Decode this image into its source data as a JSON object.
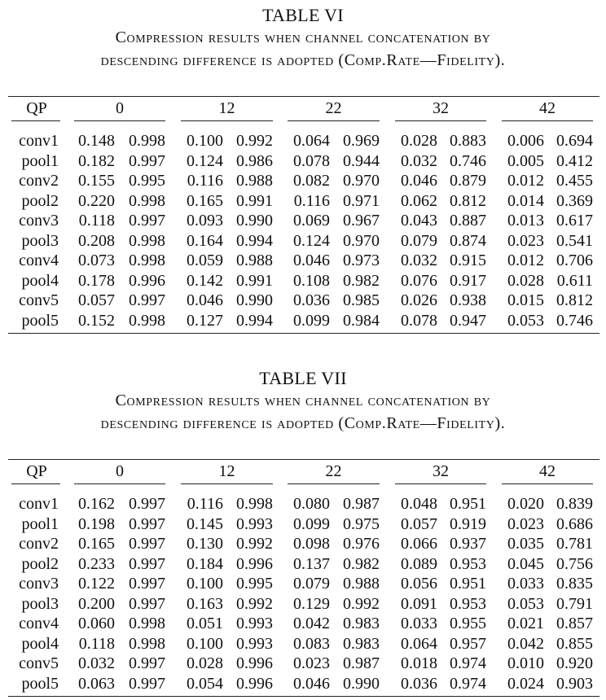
{
  "tables": [
    {
      "name": "TABLE VI",
      "caption_lines": [
        "Compression results when channel concatenation by",
        "descending difference is adopted (Comp.Rate—Fidelity)."
      ],
      "col_header": "QP",
      "qp_values": [
        "0",
        "12",
        "22",
        "32",
        "42"
      ],
      "rows": [
        {
          "label": "conv1",
          "values": [
            "0.148",
            "0.998",
            "0.100",
            "0.992",
            "0.064",
            "0.969",
            "0.028",
            "0.883",
            "0.006",
            "0.694"
          ]
        },
        {
          "label": "pool1",
          "values": [
            "0.182",
            "0.997",
            "0.124",
            "0.986",
            "0.078",
            "0.944",
            "0.032",
            "0.746",
            "0.005",
            "0.412"
          ]
        },
        {
          "label": "conv2",
          "values": [
            "0.155",
            "0.995",
            "0.116",
            "0.988",
            "0.082",
            "0.970",
            "0.046",
            "0.879",
            "0.012",
            "0.455"
          ]
        },
        {
          "label": "pool2",
          "values": [
            "0.220",
            "0.998",
            "0.165",
            "0.991",
            "0.116",
            "0.971",
            "0.062",
            "0.812",
            "0.014",
            "0.369"
          ]
        },
        {
          "label": "conv3",
          "values": [
            "0.118",
            "0.997",
            "0.093",
            "0.990",
            "0.069",
            "0.967",
            "0.043",
            "0.887",
            "0.013",
            "0.617"
          ]
        },
        {
          "label": "pool3",
          "values": [
            "0.208",
            "0.998",
            "0.164",
            "0.994",
            "0.124",
            "0.970",
            "0.079",
            "0.874",
            "0.023",
            "0.541"
          ]
        },
        {
          "label": "conv4",
          "values": [
            "0.073",
            "0.998",
            "0.059",
            "0.988",
            "0.046",
            "0.973",
            "0.032",
            "0.915",
            "0.012",
            "0.706"
          ]
        },
        {
          "label": "pool4",
          "values": [
            "0.178",
            "0.996",
            "0.142",
            "0.991",
            "0.108",
            "0.982",
            "0.076",
            "0.917",
            "0.028",
            "0.611"
          ]
        },
        {
          "label": "conv5",
          "values": [
            "0.057",
            "0.997",
            "0.046",
            "0.990",
            "0.036",
            "0.985",
            "0.026",
            "0.938",
            "0.015",
            "0.812"
          ]
        },
        {
          "label": "pool5",
          "values": [
            "0.152",
            "0.998",
            "0.127",
            "0.994",
            "0.099",
            "0.984",
            "0.078",
            "0.947",
            "0.053",
            "0.746"
          ]
        }
      ]
    },
    {
      "name": "TABLE VII",
      "caption_lines": [
        "Compression results when channel concatenation by",
        "descending difference is adopted (Comp.Rate—Fidelity)."
      ],
      "col_header": "QP",
      "qp_values": [
        "0",
        "12",
        "22",
        "32",
        "42"
      ],
      "rows": [
        {
          "label": "conv1",
          "values": [
            "0.162",
            "0.997",
            "0.116",
            "0.998",
            "0.080",
            "0.987",
            "0.048",
            "0.951",
            "0.020",
            "0.839"
          ]
        },
        {
          "label": "pool1",
          "values": [
            "0.198",
            "0.997",
            "0.145",
            "0.993",
            "0.099",
            "0.975",
            "0.057",
            "0.919",
            "0.023",
            "0.686"
          ]
        },
        {
          "label": "conv2",
          "values": [
            "0.165",
            "0.997",
            "0.130",
            "0.992",
            "0.098",
            "0.976",
            "0.066",
            "0.937",
            "0.035",
            "0.781"
          ]
        },
        {
          "label": "pool2",
          "values": [
            "0.233",
            "0.997",
            "0.184",
            "0.996",
            "0.137",
            "0.982",
            "0.089",
            "0.953",
            "0.045",
            "0.756"
          ]
        },
        {
          "label": "conv3",
          "values": [
            "0.122",
            "0.997",
            "0.100",
            "0.995",
            "0.079",
            "0.988",
            "0.056",
            "0.951",
            "0.033",
            "0.835"
          ]
        },
        {
          "label": "pool3",
          "values": [
            "0.200",
            "0.997",
            "0.163",
            "0.992",
            "0.129",
            "0.992",
            "0.091",
            "0.953",
            "0.053",
            "0.791"
          ]
        },
        {
          "label": "conv4",
          "values": [
            "0.060",
            "0.998",
            "0.051",
            "0.993",
            "0.042",
            "0.983",
            "0.033",
            "0.955",
            "0.021",
            "0.857"
          ]
        },
        {
          "label": "pool4",
          "values": [
            "0.118",
            "0.998",
            "0.100",
            "0.993",
            "0.083",
            "0.983",
            "0.064",
            "0.957",
            "0.042",
            "0.855"
          ]
        },
        {
          "label": "conv5",
          "values": [
            "0.032",
            "0.997",
            "0.028",
            "0.996",
            "0.023",
            "0.987",
            "0.018",
            "0.974",
            "0.010",
            "0.920"
          ]
        },
        {
          "label": "pool5",
          "values": [
            "0.063",
            "0.997",
            "0.054",
            "0.996",
            "0.046",
            "0.990",
            "0.036",
            "0.974",
            "0.024",
            "0.903"
          ]
        }
      ]
    }
  ]
}
